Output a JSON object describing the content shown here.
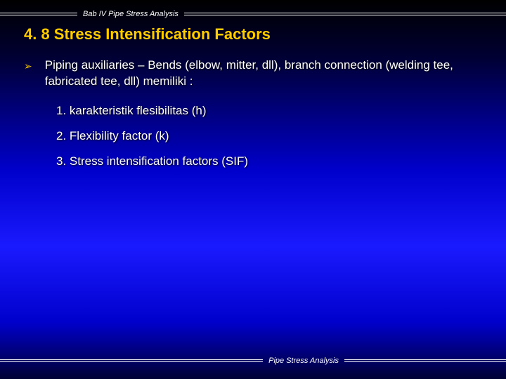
{
  "header_label": "Bab IV Pipe Stress Analysis",
  "title": "4. 8 Stress Intensification Factors",
  "bullet": {
    "marker": "➢",
    "text": "Piping auxiliaries – Bends (elbow, mitter, dll), branch connection (welding tee, fabricated tee, dll) memiliki :"
  },
  "list": [
    "1. karakteristik flesibilitas (h)",
    "2. Flexibility factor (k)",
    "3. Stress intensification factors (SIF)"
  ],
  "footer_label": "Pipe Stress Analysis",
  "colors": {
    "accent": "#ffcc00",
    "text": "#ffffff",
    "rule": "#ffffff"
  }
}
